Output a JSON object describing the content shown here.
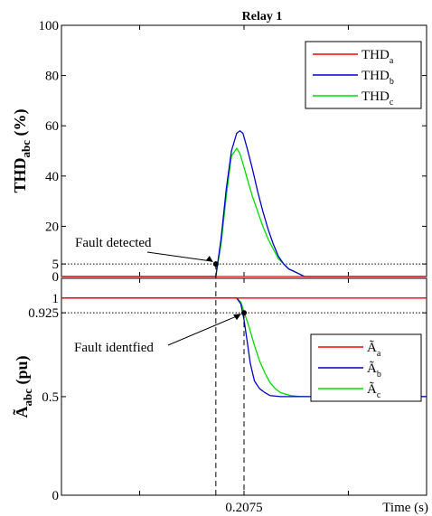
{
  "title": "Relay 1",
  "chart_data": [
    {
      "type": "line",
      "ylabel_main": "THD",
      "ylabel_sub": "abc",
      "ylabel_unit": " (%)",
      "ylim": [
        0,
        100
      ],
      "xlim": [
        0.19,
        0.225
      ],
      "yticks": [
        "0",
        "5",
        "20",
        "40",
        "60",
        "80",
        "100"
      ],
      "threshold": 5,
      "annotation": "Fault detected",
      "annotation_point": {
        "x": 0.2048,
        "y": 5
      },
      "legend_position": "top-right",
      "legend": [
        {
          "main": "THD",
          "sub": "a",
          "color": "#ff0000"
        },
        {
          "main": "THD",
          "sub": "b",
          "color": "#0000cc"
        },
        {
          "main": "THD",
          "sub": "c",
          "color": "#00dd00"
        }
      ],
      "series": [
        {
          "x": [
            0.19,
            0.2048,
            0.225
          ],
          "y": [
            0,
            0,
            0
          ]
        },
        {
          "x": [
            0.19,
            0.2048,
            0.2053,
            0.2058,
            0.2063,
            0.2068,
            0.2071,
            0.2074,
            0.2078,
            0.2083,
            0.2088,
            0.2093,
            0.2098,
            0.2103,
            0.2108,
            0.2113,
            0.2118,
            0.2123,
            0.2128,
            0.2133,
            0.225
          ],
          "y": [
            0,
            0,
            15,
            35,
            50,
            57,
            58,
            57,
            51,
            43,
            34,
            26,
            19,
            13,
            8,
            5,
            3,
            2,
            1,
            0,
            0
          ]
        },
        {
          "x": [
            0.19,
            0.2048,
            0.2053,
            0.2058,
            0.2063,
            0.2068,
            0.2071,
            0.2074,
            0.2078,
            0.2083,
            0.2088,
            0.2093,
            0.2098,
            0.2103,
            0.2108,
            0.2113,
            0.2118,
            0.2123,
            0.2128,
            0.2133,
            0.225
          ],
          "y": [
            0,
            0,
            13,
            32,
            48,
            51,
            49,
            45,
            39,
            32,
            26,
            20,
            15,
            11,
            7,
            5,
            3,
            2,
            1,
            0,
            0
          ]
        }
      ]
    },
    {
      "type": "line",
      "ylabel_main": "Ã",
      "ylabel_sub": "abc",
      "ylabel_unit": " (pu)",
      "ylim": [
        0,
        1.1
      ],
      "xlim": [
        0.19,
        0.225
      ],
      "yticks": [
        "0",
        "0.5",
        "0.925",
        "1"
      ],
      "threshold": 0.925,
      "annotation": "Fault identfied",
      "annotation_point": {
        "x": 0.2075,
        "y": 0.925
      },
      "xlabel": "Time (s)",
      "xticks": [
        "0.2075"
      ],
      "legend_position": "right",
      "legend": [
        {
          "main": "Ã",
          "sub": "a",
          "color": "#ff0000"
        },
        {
          "main": "Ã",
          "sub": "b",
          "color": "#0000cc"
        },
        {
          "main": "Ã",
          "sub": "c",
          "color": "#00dd00"
        }
      ],
      "series": [
        {
          "x": [
            0.19,
            0.207,
            0.225
          ],
          "y": [
            1,
            1,
            1
          ]
        },
        {
          "x": [
            0.19,
            0.2068,
            0.2072,
            0.2075,
            0.2078,
            0.2081,
            0.2085,
            0.209,
            0.2095,
            0.21,
            0.211,
            0.2125,
            0.225
          ],
          "y": [
            1,
            1,
            0.97,
            0.89,
            0.78,
            0.67,
            0.58,
            0.54,
            0.52,
            0.505,
            0.5,
            0.5,
            0.5
          ]
        },
        {
          "x": [
            0.19,
            0.2068,
            0.2072,
            0.2075,
            0.208,
            0.2085,
            0.209,
            0.2095,
            0.21,
            0.2105,
            0.211,
            0.212,
            0.213,
            0.225
          ],
          "y": [
            1,
            1,
            0.98,
            0.93,
            0.85,
            0.76,
            0.68,
            0.62,
            0.57,
            0.54,
            0.52,
            0.505,
            0.5,
            0.5
          ]
        }
      ]
    }
  ]
}
